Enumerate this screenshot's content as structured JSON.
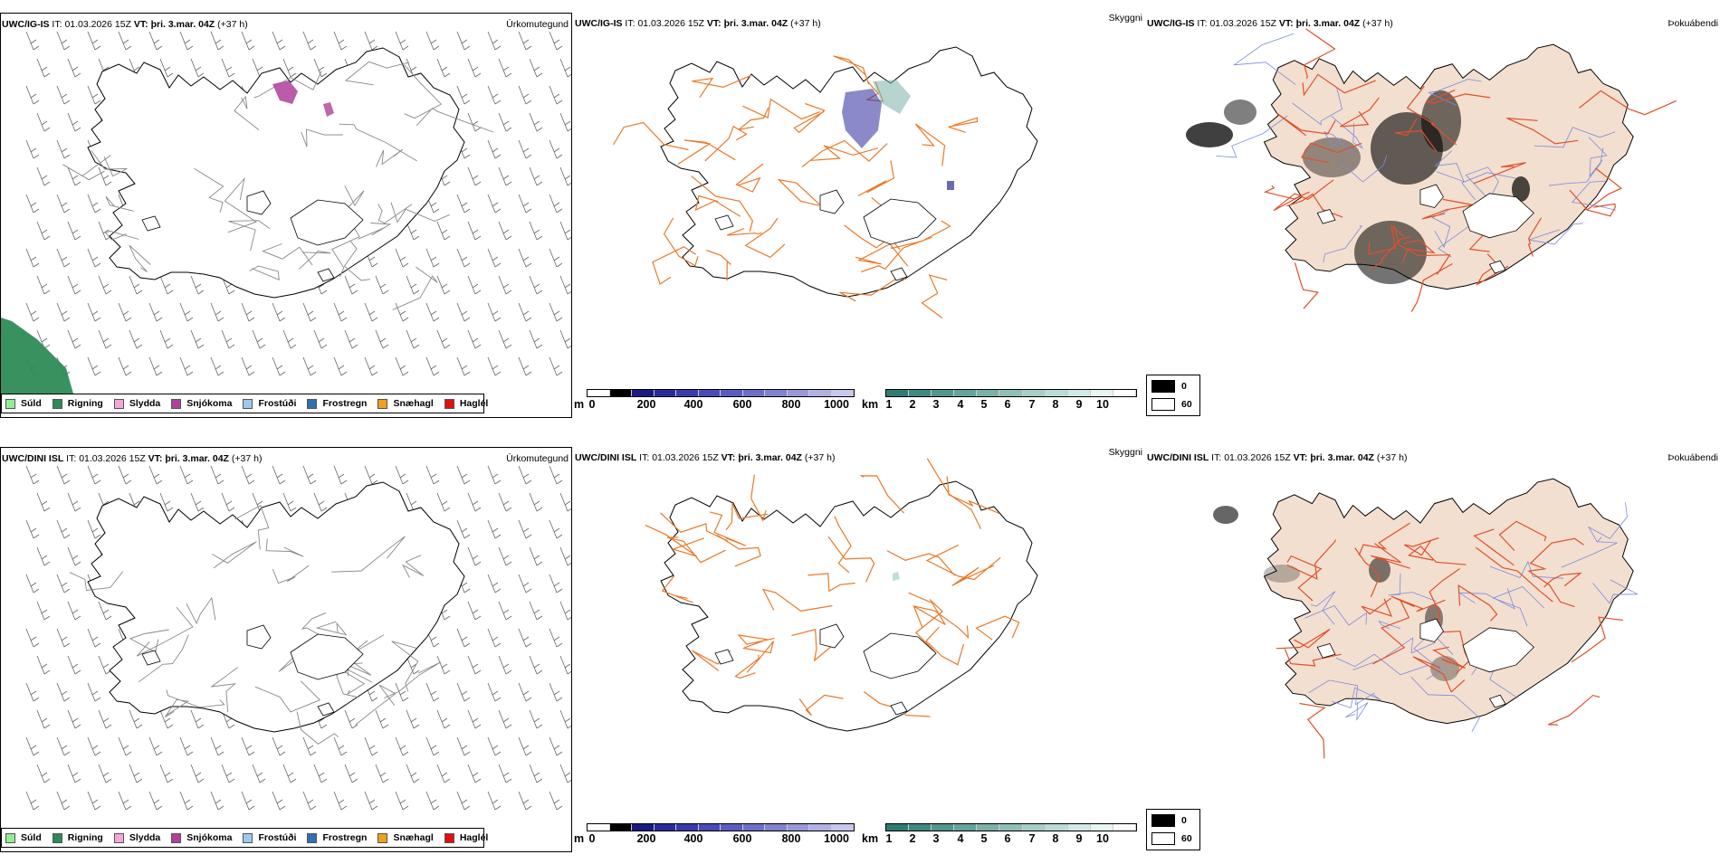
{
  "rows": [
    {
      "model": "UWC/IG-IS",
      "it_label": "IT:",
      "it_value": "01.03.2026 15Z",
      "vt_label": "VT:",
      "vt_value": "þri. 3.mar. 04Z",
      "lead": "(+37 h)"
    },
    {
      "model": "UWC/DINI ISL",
      "it_label": "IT:",
      "it_value": "01.03.2026 15Z",
      "vt_label": "VT:",
      "vt_value": "þri. 3.mar. 04Z",
      "lead": "(+37 h)"
    }
  ],
  "panel_titles": {
    "precip_type": "Úrkomutegund",
    "visibility": "Skyggni",
    "fog": "Þokuábendi"
  },
  "precip_legend": [
    {
      "label": "Súld",
      "color": "#90ee90"
    },
    {
      "label": "Rigning",
      "color": "#2e8b57"
    },
    {
      "label": "Slydda",
      "color": "#f4a6d7"
    },
    {
      "label": "Snjókoma",
      "color": "#b0409a"
    },
    {
      "label": "Frostúði",
      "color": "#9ec8f0"
    },
    {
      "label": "Frostregn",
      "color": "#2f6fb2"
    },
    {
      "label": "Snæhagl",
      "color": "#f0a020"
    },
    {
      "label": "Haglél",
      "color": "#e01010"
    }
  ],
  "cbar_m": {
    "unit": "m",
    "labels": [
      "0",
      "200",
      "400",
      "600",
      "800",
      "1000"
    ],
    "colors": [
      "#ffffff",
      "#000000",
      "#1a1a80",
      "#2a2a9a",
      "#3a3aac",
      "#4a4ab8",
      "#5c5cc0",
      "#6e6ec8",
      "#8282d0",
      "#9898da",
      "#b0b0e2",
      "#c8c8ee"
    ]
  },
  "cbar_km": {
    "unit": "km",
    "labels": [
      "1",
      "2",
      "3",
      "4",
      "5",
      "6",
      "7",
      "8",
      "9",
      "10"
    ],
    "colors": [
      "#2e7d74",
      "#3f8a80",
      "#52978d",
      "#66a49b",
      "#7ab2a9",
      "#8fc0b8",
      "#a4cec7",
      "#bbdcd6",
      "#d2eae6",
      "#e9f5f3",
      "#ffffff"
    ]
  },
  "fog_legend": [
    {
      "label": "0",
      "color": "#000000"
    },
    {
      "label": "60",
      "color": "#ffffff"
    }
  ],
  "colors": {
    "land_fog": "#f3dfcf",
    "roads": "#e87a2a",
    "roads_fog": "#e0502a",
    "rivers": "#7a8be0",
    "coast": "#000000",
    "grey_roads": "#777777"
  }
}
